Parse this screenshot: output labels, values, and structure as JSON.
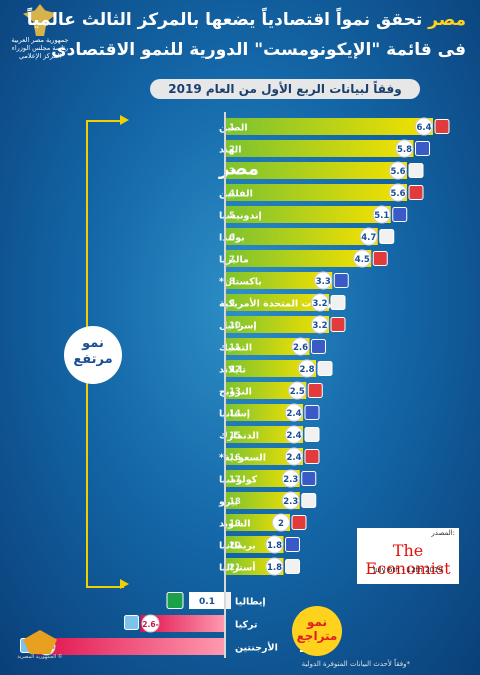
{
  "header": {
    "title_part1": "مصر",
    "title_part2": " تحقق نمواً اقتصادياً يضعها بالمركز الثالث عالمياً",
    "title_line2": "فى قائمة \"الإيكونومست\" الدورية للنمو الاقتصادى",
    "subtitle": "وفقاً لبيانات الربع الأول من العام 2019"
  },
  "logo": {
    "line1": "جمهورية مصر العربية",
    "line2": "رئاسة مجلس الوزراء",
    "line3": "المركز الإعلامي"
  },
  "labels": {
    "high_growth": [
      "نمو",
      "مرتفع"
    ],
    "declining_growth": [
      "نمو",
      "متراجع"
    ]
  },
  "source": {
    "label": "المصدر:",
    "name": "The Economist",
    "date": "July 6th - 12th 2019"
  },
  "footnote": "*وفقاً لأحدث البيانات المتوفرة الدولية",
  "watermark": "الجمهورية المصرية ©",
  "colors": {
    "positive_bar_start": "#7bc230",
    "positive_bar_end": "#f6e100",
    "negative_bar_start": "#ff9ab0",
    "negative_bar_end": "#e0114e",
    "highlight": "#ffd21e"
  },
  "chart_data": {
    "type": "bar",
    "orientation": "horizontal",
    "ylabel": "",
    "xlabel": "",
    "items": [
      {
        "rank": "1",
        "country": "الصين",
        "value": 6.4,
        "label": "6.4"
      },
      {
        "rank": "2",
        "country": "الهند",
        "value": 5.8,
        "label": "5.8"
      },
      {
        "rank": "3",
        "country": "مصر",
        "value": 5.6,
        "label": "5.6",
        "highlight": true
      },
      {
        "rank": "4",
        "country": "الفلبين",
        "value": 5.6,
        "label": "5.6"
      },
      {
        "rank": "5",
        "country": "إندونيسيا",
        "value": 5.1,
        "label": "5.1"
      },
      {
        "rank": "6",
        "country": "بولندا",
        "value": 4.7,
        "label": "4.7"
      },
      {
        "rank": "7",
        "country": "ماليزيا",
        "value": 4.5,
        "label": "4.5"
      },
      {
        "rank": "8",
        "country": "باكستان*",
        "value": 3.3,
        "label": "3.3"
      },
      {
        "rank": "9",
        "country": "الولايات المتحدة الأمريكية",
        "value": 3.2,
        "label": "3.2"
      },
      {
        "rank": "10",
        "country": "إسرائيل",
        "value": 3.2,
        "label": "3.2"
      },
      {
        "rank": "11",
        "country": "التشيك",
        "value": 2.6,
        "label": "2.6"
      },
      {
        "rank": "12",
        "country": "تايلاند",
        "value": 2.8,
        "label": "2.8"
      },
      {
        "rank": "13",
        "country": "النرويج",
        "value": 2.5,
        "label": "2.5"
      },
      {
        "rank": "14",
        "country": "إسبانيا",
        "value": 2.4,
        "label": "2.4"
      },
      {
        "rank": "15",
        "country": "الدنمارك",
        "value": 2.4,
        "label": "2.4"
      },
      {
        "rank": "16",
        "country": "السعودية*",
        "value": 2.4,
        "label": "2.4"
      },
      {
        "rank": "17",
        "country": "كولومبيا",
        "value": 2.3,
        "label": "2.3"
      },
      {
        "rank": "18",
        "country": "بيرو",
        "value": 2.3,
        "label": "2.3"
      },
      {
        "rank": "19",
        "country": "السويد",
        "value": 2,
        "label": "2"
      },
      {
        "rank": "20",
        "country": "بريطانيا",
        "value": 1.8,
        "label": "1.8"
      },
      {
        "rank": "21",
        "country": "أستراليا",
        "value": 1.8,
        "label": "1.8"
      },
      {
        "rank": "",
        "country": "إيطاليا",
        "value": 0.1,
        "label": "0.1"
      },
      {
        "rank": "",
        "country": "تركيا",
        "value": -2.6,
        "label": "2.6-"
      },
      {
        "rank": "",
        "country": "الأرجنتين",
        "value": -5.8,
        "label": "5.8-"
      }
    ],
    "xlim": [
      -6,
      6.6
    ]
  }
}
